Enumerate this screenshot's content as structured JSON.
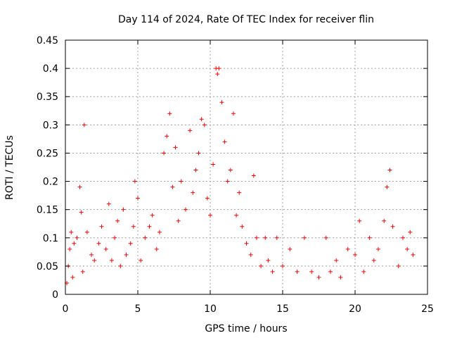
{
  "chart_data": {
    "type": "scatter",
    "title": "Day 114 of 2024, Rate Of TEC Index for receiver flin",
    "xlabel": "GPS time / hours",
    "ylabel": "ROTI / TECUs",
    "xlim": [
      0,
      25
    ],
    "ylim": [
      0,
      0.45
    ],
    "xticks": [
      "0",
      "5",
      "10",
      "15",
      "20",
      "25"
    ],
    "yticks": [
      "0",
      "0.05",
      "0.1",
      "0.15",
      "0.2",
      "0.25",
      "0.3",
      "0.35",
      "0.4",
      "0.45"
    ],
    "grid": true,
    "marker": "+",
    "color": "#ff0000",
    "series": [
      {
        "points": [
          [
            0.1,
            0.02
          ],
          [
            0.2,
            0.05
          ],
          [
            0.3,
            0.08
          ],
          [
            0.4,
            0.11
          ],
          [
            0.5,
            0.03
          ],
          [
            0.6,
            0.09
          ],
          [
            0.8,
            0.1
          ],
          [
            1.0,
            0.19
          ],
          [
            1.1,
            0.145
          ],
          [
            1.2,
            0.04
          ],
          [
            1.3,
            0.3
          ],
          [
            1.5,
            0.11
          ],
          [
            1.8,
            0.07
          ],
          [
            2.0,
            0.06
          ],
          [
            2.3,
            0.09
          ],
          [
            2.5,
            0.12
          ],
          [
            2.8,
            0.08
          ],
          [
            3.0,
            0.16
          ],
          [
            3.2,
            0.06
          ],
          [
            3.4,
            0.1
          ],
          [
            3.6,
            0.13
          ],
          [
            3.8,
            0.05
          ],
          [
            4.0,
            0.15
          ],
          [
            4.2,
            0.07
          ],
          [
            4.5,
            0.09
          ],
          [
            4.7,
            0.12
          ],
          [
            4.8,
            0.2
          ],
          [
            5.0,
            0.17
          ],
          [
            5.2,
            0.06
          ],
          [
            5.5,
            0.1
          ],
          [
            5.8,
            0.12
          ],
          [
            6.0,
            0.14
          ],
          [
            6.3,
            0.08
          ],
          [
            6.5,
            0.11
          ],
          [
            6.8,
            0.25
          ],
          [
            7.0,
            0.28
          ],
          [
            7.2,
            0.32
          ],
          [
            7.4,
            0.19
          ],
          [
            7.6,
            0.26
          ],
          [
            7.8,
            0.13
          ],
          [
            8.0,
            0.2
          ],
          [
            8.3,
            0.15
          ],
          [
            8.6,
            0.29
          ],
          [
            8.8,
            0.18
          ],
          [
            9.0,
            0.22
          ],
          [
            9.2,
            0.25
          ],
          [
            9.4,
            0.31
          ],
          [
            9.6,
            0.3
          ],
          [
            9.8,
            0.17
          ],
          [
            10.0,
            0.14
          ],
          [
            10.2,
            0.23
          ],
          [
            10.4,
            0.4
          ],
          [
            10.5,
            0.39
          ],
          [
            10.6,
            0.4
          ],
          [
            10.8,
            0.34
          ],
          [
            11.0,
            0.27
          ],
          [
            11.2,
            0.2
          ],
          [
            11.4,
            0.22
          ],
          [
            11.6,
            0.32
          ],
          [
            11.8,
            0.14
          ],
          [
            12.0,
            0.18
          ],
          [
            12.2,
            0.12
          ],
          [
            12.5,
            0.09
          ],
          [
            12.8,
            0.07
          ],
          [
            13.0,
            0.21
          ],
          [
            13.2,
            0.1
          ],
          [
            13.5,
            0.05
          ],
          [
            13.8,
            0.1
          ],
          [
            14.0,
            0.06
          ],
          [
            14.3,
            0.04
          ],
          [
            14.6,
            0.1
          ],
          [
            15.0,
            0.05
          ],
          [
            15.5,
            0.08
          ],
          [
            16.0,
            0.04
          ],
          [
            16.5,
            0.1
          ],
          [
            17.0,
            0.04
          ],
          [
            17.5,
            0.03
          ],
          [
            18.0,
            0.1
          ],
          [
            18.3,
            0.04
          ],
          [
            18.7,
            0.06
          ],
          [
            19.0,
            0.03
          ],
          [
            19.5,
            0.08
          ],
          [
            20.0,
            0.07
          ],
          [
            20.3,
            0.13
          ],
          [
            20.6,
            0.04
          ],
          [
            21.0,
            0.1
          ],
          [
            21.3,
            0.06
          ],
          [
            21.6,
            0.08
          ],
          [
            22.0,
            0.13
          ],
          [
            22.2,
            0.19
          ],
          [
            22.4,
            0.22
          ],
          [
            22.6,
            0.12
          ],
          [
            23.0,
            0.05
          ],
          [
            23.3,
            0.1
          ],
          [
            23.6,
            0.08
          ],
          [
            23.8,
            0.11
          ],
          [
            24.0,
            0.07
          ]
        ]
      }
    ]
  }
}
